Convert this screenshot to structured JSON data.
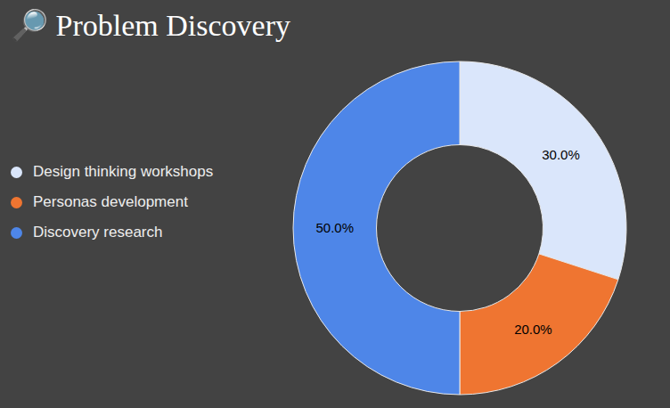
{
  "chart_data": {
    "type": "donut",
    "title": "🔎 Problem Discovery",
    "categories": [
      "Design thinking workshops",
      "Personas development",
      "Discovery research"
    ],
    "values": [
      30,
      20,
      50
    ],
    "value_labels": [
      "30.0%",
      "20.0%",
      "50.0%"
    ],
    "colors": [
      "#dae6fb",
      "#ef7531",
      "#4e86e8"
    ],
    "data_labels": true,
    "legend": "left"
  }
}
